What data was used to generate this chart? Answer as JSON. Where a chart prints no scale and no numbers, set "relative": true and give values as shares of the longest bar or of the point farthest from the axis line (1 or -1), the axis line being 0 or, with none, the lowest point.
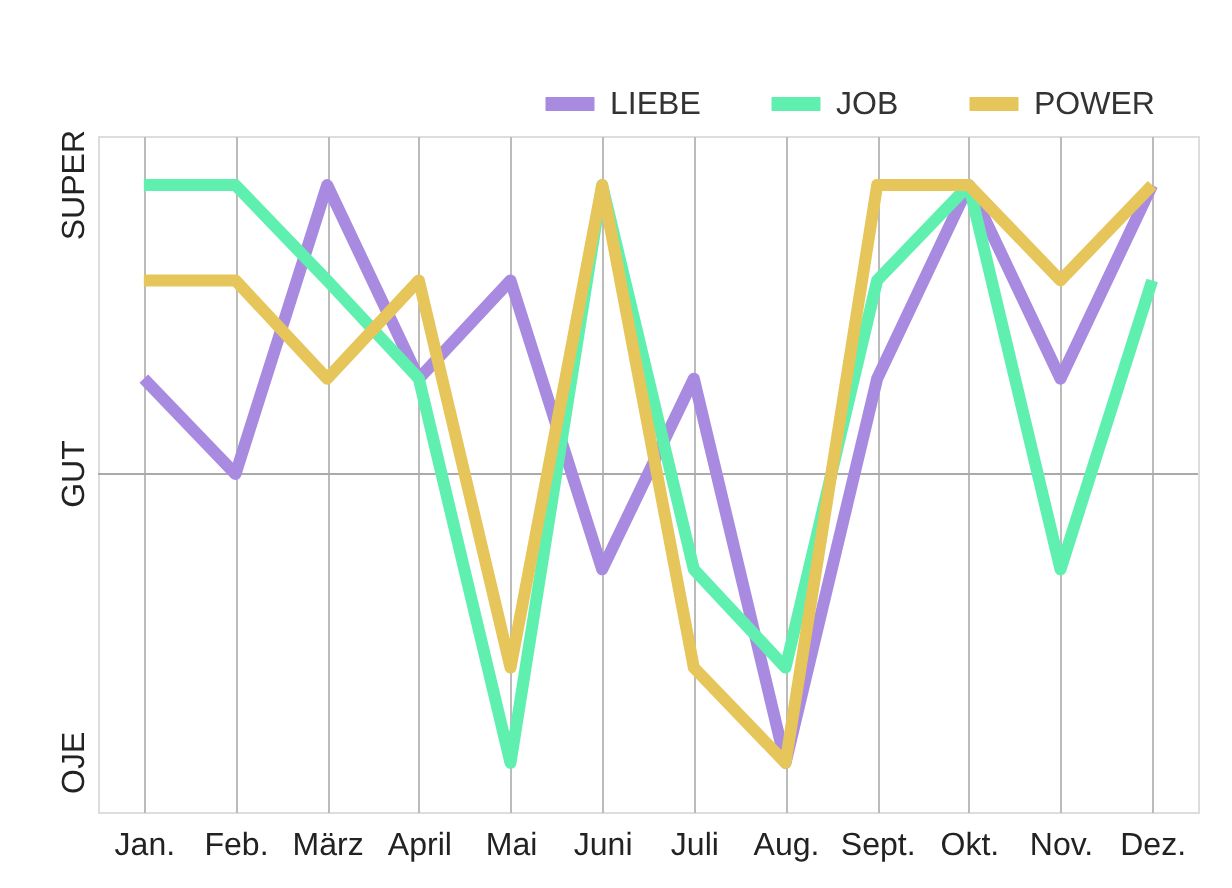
{
  "chart_data": {
    "type": "line",
    "relative": true,
    "categories": [
      "Jan.",
      "Feb.",
      "März",
      "April",
      "Mai",
      "Juni",
      "Juli",
      "Aug.",
      "Sept.",
      "Okt.",
      "Nov.",
      "Dez."
    ],
    "series": [
      {
        "name": "LIEBE",
        "color": "#a88be0",
        "values": [
          0.33,
          0,
          1,
          0.33,
          0.67,
          -0.33,
          0.33,
          -1,
          0.33,
          1,
          0.33,
          1
        ]
      },
      {
        "name": "JOB",
        "color": "#5ff0b0",
        "values": [
          1,
          1,
          0.67,
          0.33,
          -1,
          1,
          -0.33,
          -0.67,
          0.67,
          1,
          -0.33,
          0.67
        ]
      },
      {
        "name": "POWER",
        "color": "#e6c55a",
        "values": [
          0.67,
          0.67,
          0.33,
          0.67,
          -0.67,
          1,
          -0.67,
          -1,
          1,
          1,
          0.67,
          1
        ]
      }
    ],
    "annotations": [
      "SUPER",
      "GUT",
      "OJE"
    ],
    "ref_lines": [
      {
        "axis": "y",
        "value": 0,
        "label": null
      }
    ],
    "grid": "x",
    "legend": "top right",
    "line_style": "solid",
    "marker": "none"
  }
}
